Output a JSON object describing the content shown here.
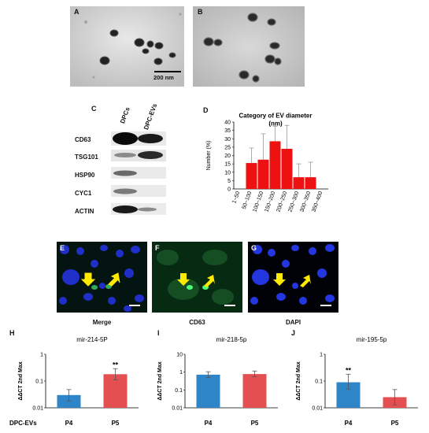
{
  "panels": {
    "a": "A",
    "b": "B",
    "c": "C",
    "d": "D",
    "e": "E",
    "f": "F",
    "g": "G",
    "h": "H",
    "i": "I",
    "j": "J"
  },
  "tem": {
    "scale_bar_label": "200 nm"
  },
  "western_blot": {
    "columns": [
      "DPCs",
      "DPC-EVs"
    ],
    "rows": [
      "CD63",
      "TSG101",
      "HSP90",
      "CYC1",
      "ACTIN"
    ]
  },
  "fluorescence": {
    "captions": [
      "Merge",
      "CD63",
      "DAPI"
    ]
  },
  "chart_data": [
    {
      "panel": "D",
      "type": "bar",
      "title": "Category of EV diameter (nm)",
      "title_lines": [
        "Category of EV diameter",
        "(nm)"
      ],
      "ylabel": "Number (%)",
      "xlabel": "",
      "ylim": [
        0,
        40
      ],
      "yticks": [
        0,
        5,
        10,
        15,
        20,
        25,
        30,
        35,
        40
      ],
      "categories": [
        "1~50",
        "50~100",
        "100~150",
        "150~200",
        "200~250",
        "250~300",
        "300~350",
        "350~400"
      ],
      "values": [
        0,
        15.5,
        17.5,
        28.5,
        24,
        7,
        7,
        0
      ],
      "errors": [
        0,
        9,
        15.5,
        9,
        14,
        8,
        9,
        0
      ],
      "bar_color": "#ee1111",
      "grid": false
    },
    {
      "panel": "H",
      "type": "bar",
      "title": "mir-214-5P",
      "ylabel": "ΔΔCT 2nd Max",
      "yscale": "log",
      "ylim": [
        0.01,
        1
      ],
      "yticks": [
        0.01,
        0.1,
        1
      ],
      "ytick_labels": [
        "0.01",
        "0.1",
        "1"
      ],
      "categories": [
        "P4",
        "P5"
      ],
      "values": [
        0.03,
        0.18
      ],
      "errors_upper": [
        0.048,
        0.29
      ],
      "errors_lower": [
        0.018,
        0.11
      ],
      "colors": [
        "#2e86c9",
        "#e45052"
      ],
      "annotations": [
        {
          "category": "P5",
          "text": "**"
        }
      ],
      "row_label": "DPC-EVs"
    },
    {
      "panel": "I",
      "type": "bar",
      "title": "mir-218-5p",
      "ylabel": "ΔΔCT 2nd Max",
      "yscale": "log",
      "ylim": [
        0.01,
        10
      ],
      "yticks": [
        0.01,
        0.1,
        1,
        10
      ],
      "ytick_labels": [
        "0.01",
        "0.1",
        "1",
        "10"
      ],
      "categories": [
        "P4",
        "P5"
      ],
      "values": [
        0.72,
        0.78
      ],
      "errors_upper": [
        1.05,
        1.15
      ],
      "errors_lower": [
        0.5,
        0.55
      ],
      "colors": [
        "#2e86c9",
        "#e45052"
      ]
    },
    {
      "panel": "J",
      "type": "bar",
      "title": "mir-195-5p",
      "ylabel": "ΔΔCT 2nd Max",
      "yscale": "log",
      "ylim": [
        0.01,
        1
      ],
      "yticks": [
        0.01,
        0.1,
        1
      ],
      "ytick_labels": [
        "0.01",
        "0.1",
        "1"
      ],
      "categories": [
        "P4",
        "P5"
      ],
      "values": [
        0.09,
        0.025
      ],
      "errors_upper": [
        0.18,
        0.048
      ],
      "errors_lower": [
        0.05,
        0.013
      ],
      "colors": [
        "#2e86c9",
        "#e45052"
      ],
      "annotations": [
        {
          "category": "P4",
          "text": "**"
        }
      ]
    }
  ]
}
